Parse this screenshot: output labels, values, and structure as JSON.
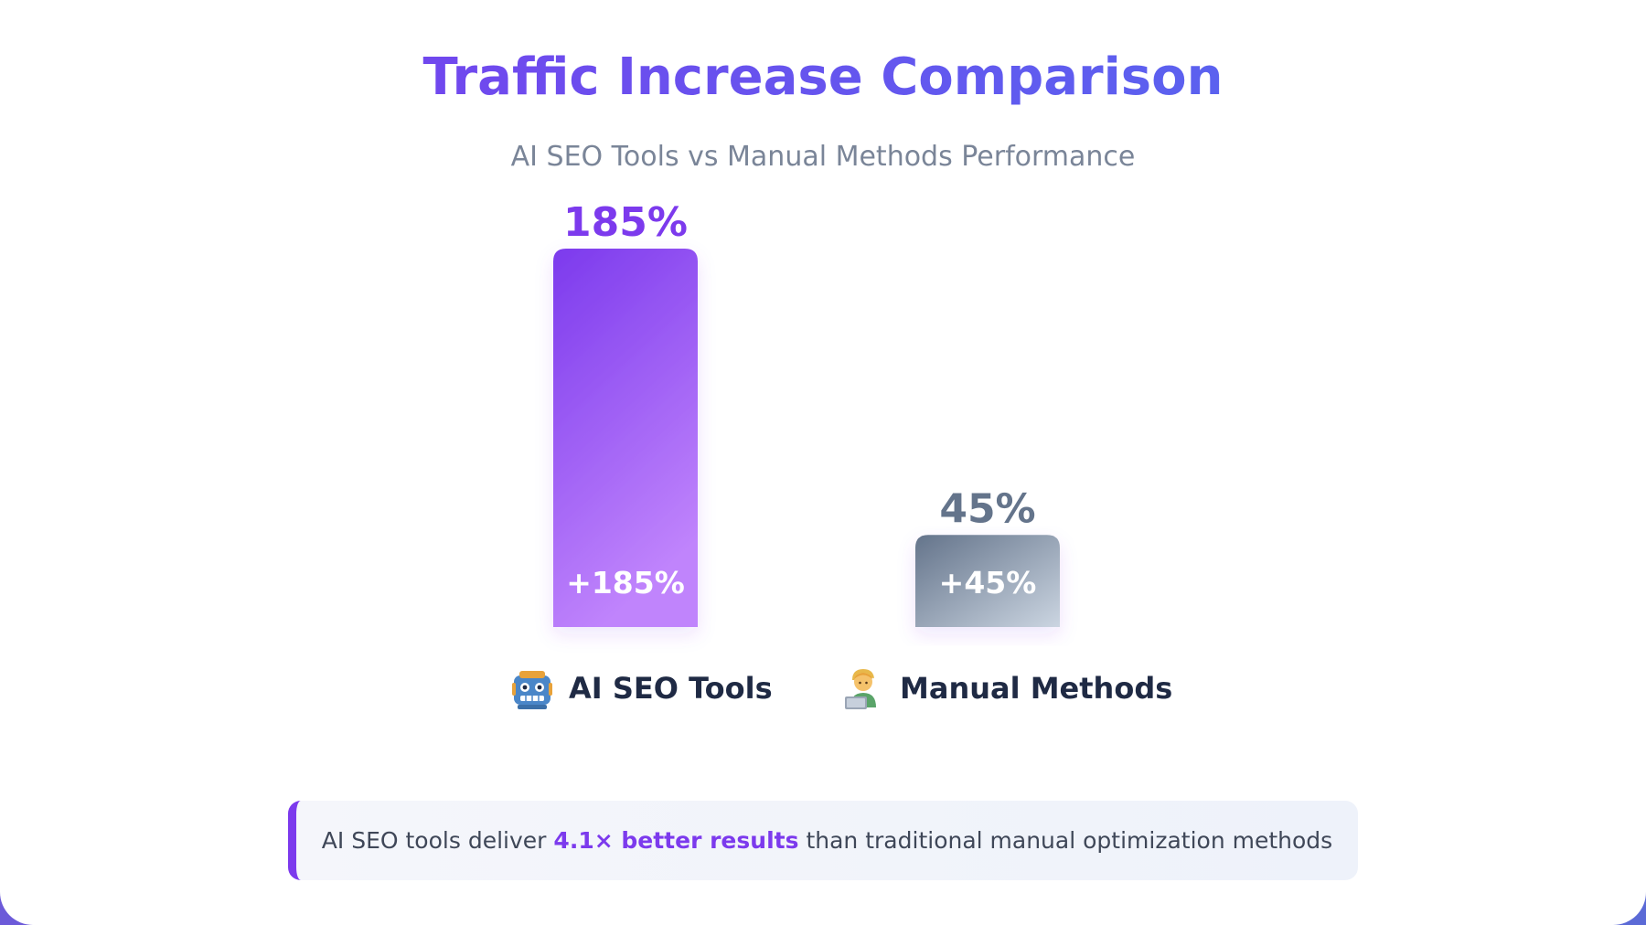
{
  "title": "Traffic Increase Comparison",
  "subtitle": "AI SEO Tools vs Manual Methods Performance",
  "colors": {
    "title_start": "#7c3aed",
    "title_end": "#4f6ff0",
    "ai_bar_top": "#7c3aed",
    "ai_bar_bottom": "#c084fc",
    "manual_bar_top": "#64748b",
    "manual_bar_bottom": "#cbd5e1",
    "accent": "#7c3aed"
  },
  "chart_data": {
    "type": "bar",
    "title": "Traffic Increase Comparison",
    "subtitle": "AI SEO Tools vs Manual Methods Performance",
    "categories": [
      "AI SEO Tools",
      "Manual Methods"
    ],
    "values": [
      185,
      45
    ],
    "value_labels": [
      "185%",
      "45%"
    ],
    "inner_labels": [
      "+185%",
      "+45%"
    ],
    "category_icons": [
      "robot-icon",
      "technologist-icon"
    ],
    "xlabel": "",
    "ylabel": "",
    "ylim": [
      0,
      185
    ],
    "grid": false,
    "legend": "none"
  },
  "callout": {
    "prefix": "AI SEO tools deliver",
    "highlight": "4.1× better results",
    "suffix": "than traditional manual optimization methods"
  }
}
